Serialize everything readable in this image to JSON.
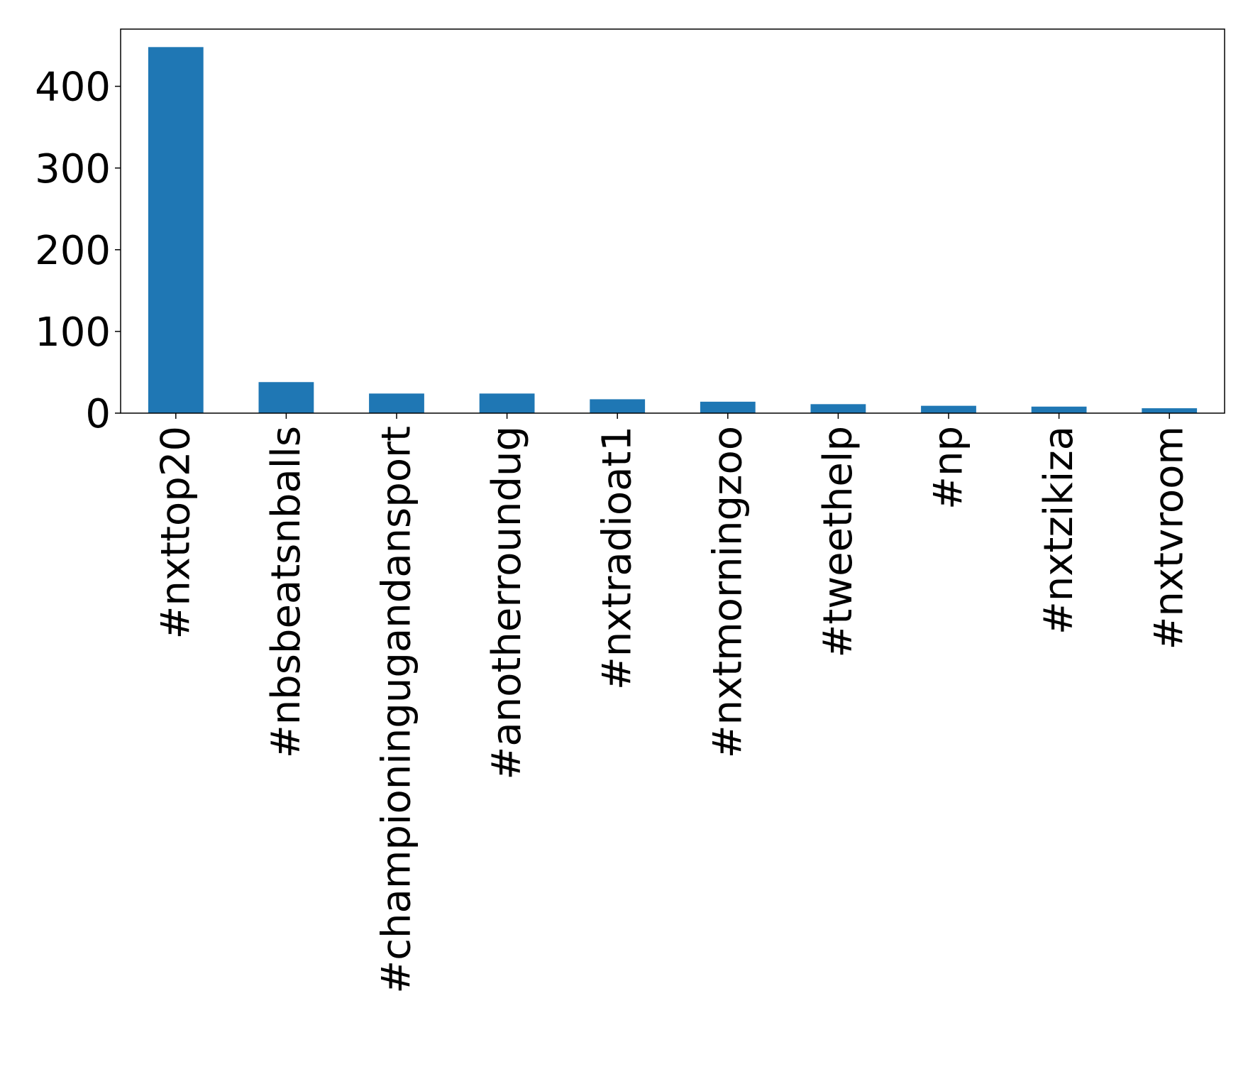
{
  "chart_data": {
    "type": "bar",
    "title": "",
    "xlabel": "",
    "ylabel": "",
    "categories": [
      "#nxttop20",
      "#nbsbeatsnballs",
      "#championingugandansport",
      "#anotherroundug",
      "#nxtradioat1",
      "#nxtmorningzoo",
      "#tweethelp",
      "#np",
      "#nxtzikiza",
      "#nxtvroom"
    ],
    "values": [
      448,
      38,
      24,
      24,
      17,
      14,
      11,
      9,
      8,
      6
    ],
    "ylim": [
      0,
      470
    ],
    "yticks": [
      0,
      100,
      200,
      300,
      400
    ],
    "ytick_labels": [
      "0",
      "100",
      "200",
      "300",
      "400"
    ],
    "grid": false,
    "legend": "none",
    "bar_color": "#1f77b4"
  }
}
